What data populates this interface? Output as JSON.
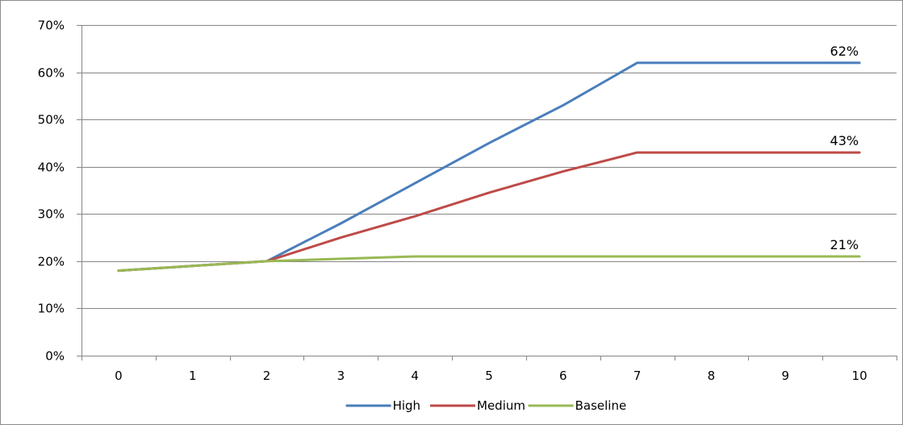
{
  "chart_data": {
    "type": "line",
    "categories": [
      "0",
      "1",
      "2",
      "3",
      "4",
      "5",
      "6",
      "7",
      "8",
      "9",
      "10"
    ],
    "series": [
      {
        "name": "High",
        "color": "#4a7ebb",
        "values": [
          0.18,
          0.19,
          0.2,
          0.28,
          0.365,
          0.45,
          0.53,
          0.62,
          0.62,
          0.62,
          0.62
        ]
      },
      {
        "name": "Medium",
        "color": "#be4b48",
        "values": [
          0.18,
          0.19,
          0.2,
          0.25,
          0.295,
          0.345,
          0.39,
          0.43,
          0.43,
          0.43,
          0.43
        ]
      },
      {
        "name": "Baseline",
        "color": "#98b954",
        "values": [
          0.18,
          0.19,
          0.2,
          0.205,
          0.21,
          0.21,
          0.21,
          0.21,
          0.21,
          0.21,
          0.21
        ]
      }
    ],
    "ylim": [
      0,
      0.7
    ],
    "y_ticks": [
      0,
      0.1,
      0.2,
      0.3,
      0.4,
      0.5,
      0.6,
      0.7
    ],
    "y_tick_labels": [
      "0%",
      "10%",
      "20%",
      "30%",
      "40%",
      "50%",
      "60%",
      "70%"
    ],
    "gridlines": true,
    "legend_position": "bottom",
    "end_labels": [
      "62%",
      "43%",
      "21%"
    ],
    "title": "",
    "xlabel": "",
    "ylabel": ""
  }
}
